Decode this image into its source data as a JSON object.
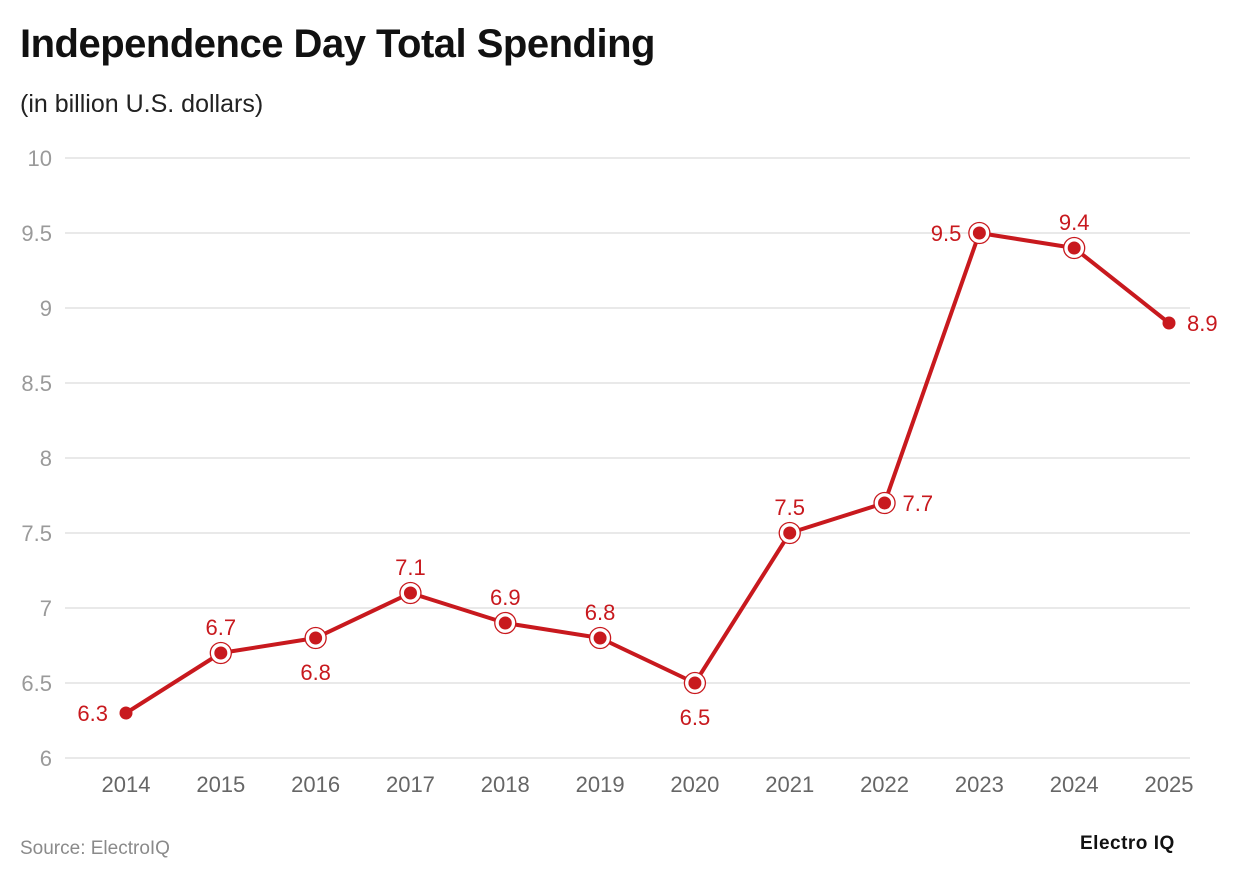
{
  "chart_data": {
    "type": "line",
    "title": "Independence Day Total Spending",
    "subtitle": "(in billion U.S. dollars)",
    "categories": [
      "2014",
      "2015",
      "2016",
      "2017",
      "2018",
      "2019",
      "2020",
      "2021",
      "2022",
      "2023",
      "2024",
      "2025"
    ],
    "values": [
      6.3,
      6.7,
      6.8,
      7.1,
      6.9,
      6.8,
      6.5,
      7.5,
      7.7,
      9.5,
      9.4,
      8.9
    ],
    "ylim": [
      6,
      10
    ],
    "yticks": [
      "6",
      "6.5",
      "7",
      "7.5",
      "8",
      "8.5",
      "9",
      "9.5",
      "10"
    ],
    "grid": true,
    "line_color": "#c8191e",
    "xlabel": "",
    "ylabel": ""
  },
  "footer": {
    "source": "Source: ElectroIQ",
    "logo": "Electro IQ"
  }
}
